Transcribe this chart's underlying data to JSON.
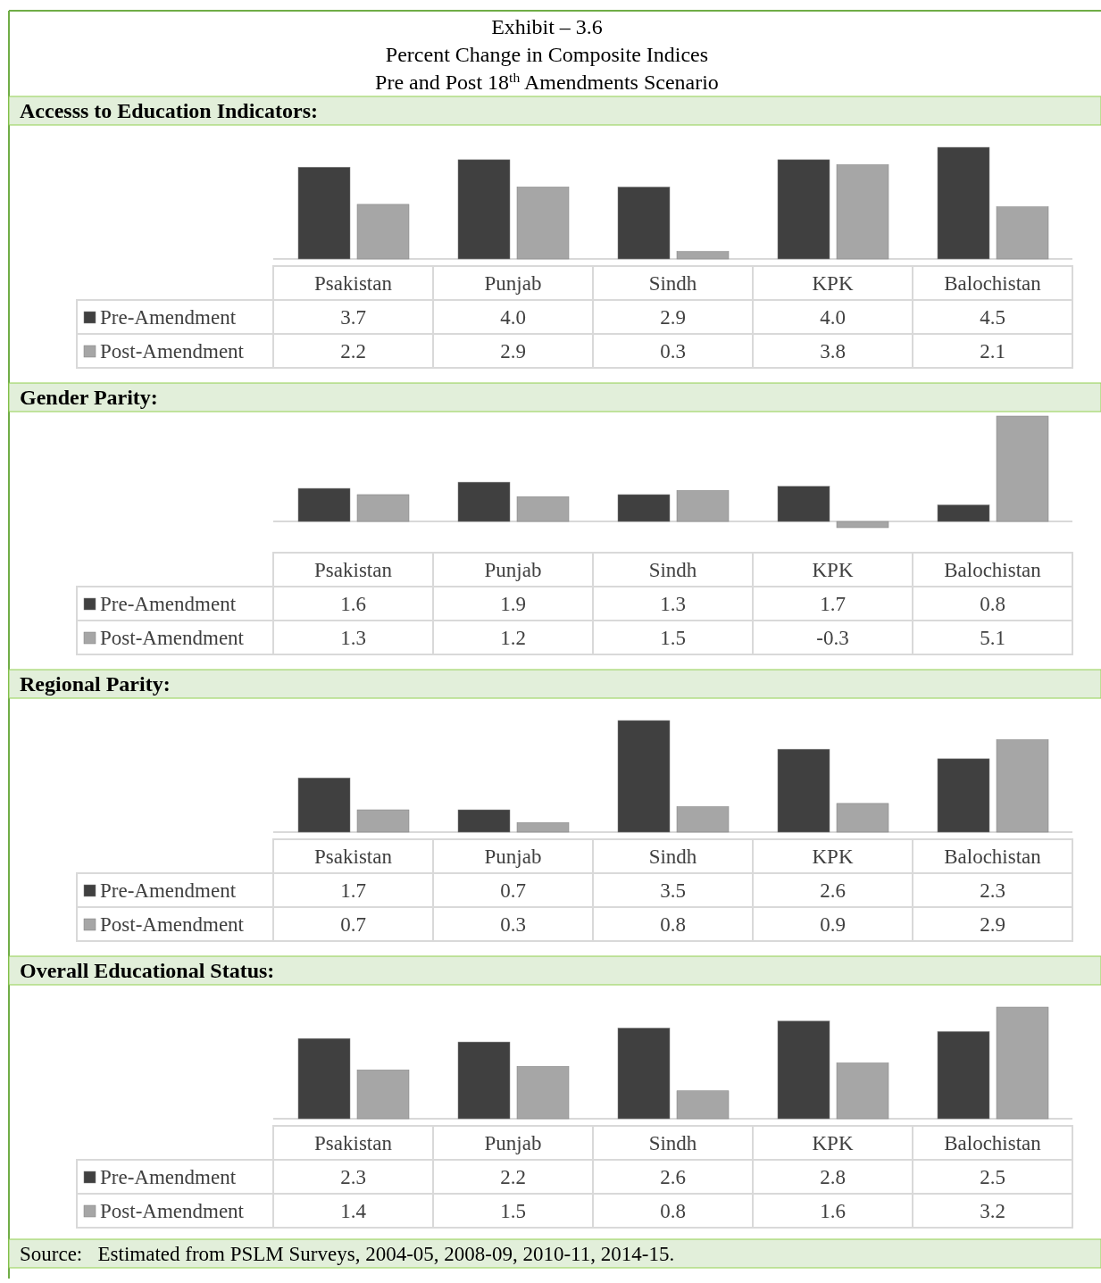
{
  "chart_data": [
    {
      "type": "bar",
      "title": "Exhibit – 3.6\nPercent Change in Composite Indices\nPre and Post 18$^{th}$ Amendments Scenario",
      "subtitle": "Accesss to Education Indicators:",
      "categories": [
        "Psakistan",
        "Punjab",
        "Sindh",
        "KPK",
        "Balochistan"
      ],
      "legend": "left",
      "data_labels": true,
      "series": [
        {
          "name": "Pre-Amendment",
          "color": "#404040",
          "values": [
            3.7,
            4.0,
            2.9,
            4.0,
            4.5
          ],
          "value_labels": [
            "3.7",
            "4.0",
            "2.9",
            "4.0",
            "4.5"
          ]
        },
        {
          "name": "Post-Amendment",
          "color": "#a6a6a6",
          "values": [
            2.2,
            2.9,
            0.3,
            3.8,
            2.1
          ]
        }
      ]
    },
    {
      "type": "bar",
      "title": "Gender Parity:",
      "categories": [
        "Psakistan",
        "Punjab",
        "Sindh",
        "KPK",
        "Balochistan"
      ],
      "legend": "left",
      "data_labels": true,
      "series": [
        {
          "name": "Pre-Amendment",
          "color": "#404040",
          "values": [
            1.6,
            1.9,
            1.3,
            1.7,
            0.8
          ]
        },
        {
          "name": "Post-Amendment",
          "color": "#a6a6a6",
          "values": [
            1.3,
            1.2,
            1.5,
            -0.3,
            5.1
          ]
        }
      ]
    },
    {
      "type": "bar",
      "title": "Regional Parity:",
      "categories": [
        "Psakistan",
        "Punjab",
        "Sindh",
        "KPK",
        "Balochistan"
      ],
      "legend": "left",
      "data_labels": true,
      "series": [
        {
          "name": "Pre-Amendment",
          "color": "#404040",
          "values": [
            1.7,
            0.7,
            3.5,
            2.6,
            2.3
          ]
        },
        {
          "name": "Post-Amendment",
          "color": "#a6a6a6",
          "values": [
            0.7,
            0.3,
            0.8,
            0.9,
            2.9
          ]
        }
      ]
    },
    {
      "type": "bar",
      "title": "Overall Educational Status:",
      "categories": [
        "Psakistan",
        "Punjab",
        "Sindh",
        "KPK",
        "Balochistan"
      ],
      "legend": "left",
      "data_labels": true,
      "series": [
        {
          "name": "Pre-Amendment",
          "color": "#404040",
          "values": [
            2.3,
            2.2,
            2.6,
            2.8,
            2.5
          ]
        },
        {
          "name": "Post-Amendment",
          "color": "#a6a6a6",
          "values": [
            1.4,
            1.5,
            0.8,
            1.6,
            3.2
          ]
        }
      ],
      "annotations": [
        "Source:   Estimated from PSLM Surveys, 2004-05, 2008-09, 2010-11, 2014-15."
      ]
    }
  ]
}
